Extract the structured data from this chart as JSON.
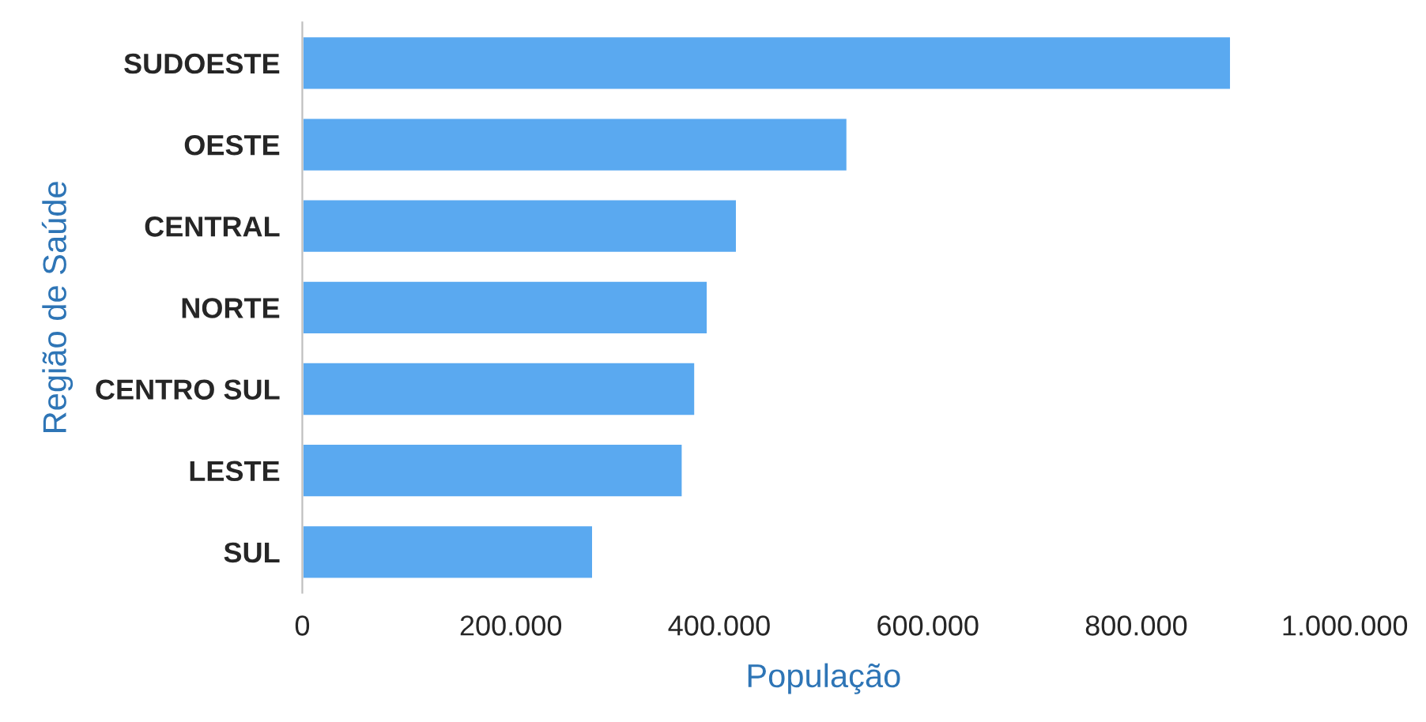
{
  "chart_data": {
    "type": "bar",
    "orientation": "horizontal",
    "xlabel": "População",
    "ylabel": "Região de Saúde",
    "categories": [
      "SUDOESTE",
      "OESTE",
      "CENTRAL",
      "NORTE",
      "CENTRO SUL",
      "LESTE",
      "SUL"
    ],
    "values": [
      891000,
      523000,
      417000,
      389000,
      377000,
      365000,
      279000
    ],
    "color": "#5aa9f0",
    "xlim": [
      0,
      1000000
    ],
    "xticks": [
      {
        "value": 0,
        "label": "0"
      },
      {
        "value": 200000,
        "label": "200.000"
      },
      {
        "value": 400000,
        "label": "400.000"
      },
      {
        "value": 600000,
        "label": "600.000"
      },
      {
        "value": 800000,
        "label": "800.000"
      },
      {
        "value": 1000000,
        "label": "1.000.000"
      }
    ],
    "grid": false,
    "legend": false
  }
}
